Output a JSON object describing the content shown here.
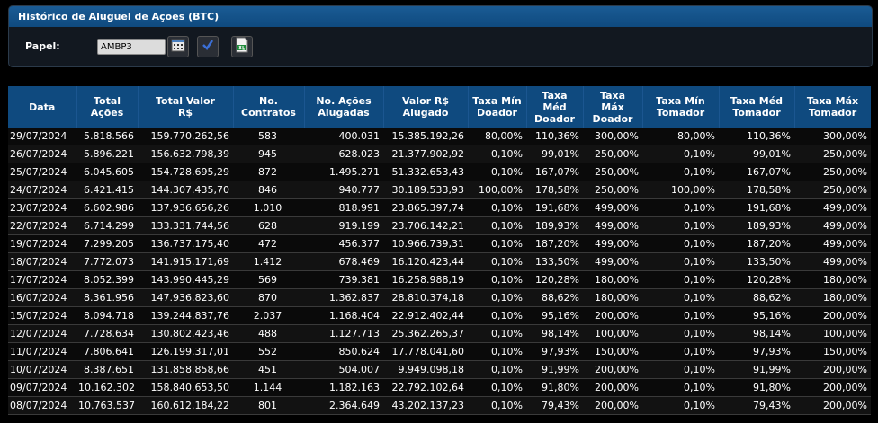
{
  "panel": {
    "title": "Histórico de Aluguel de Ações (BTC)",
    "papel_label": "Papel:",
    "ticker_value": "AMBP3",
    "buttons": [
      "calendar-icon",
      "checkmark-icon",
      "excel-export-icon"
    ]
  },
  "table": {
    "headers": [
      "Data",
      "Total\nAções",
      "Total Valor\nR$",
      "No.\nContratos",
      "No. Ações\nAlugadas",
      "Valor R$\nAlugado",
      "Taxa Mín\nDoador",
      "Taxa\nMéd\nDoador",
      "Taxa\nMáx\nDoador",
      "Taxa Mín\nTomador",
      "Taxa Méd\nTomador",
      "Taxa Máx\nTomador"
    ],
    "rows": [
      [
        "29/07/2024",
        "5.818.566",
        "159.770.262,56",
        "583",
        "400.031",
        "15.385.192,26",
        "80,00%",
        "110,36%",
        "300,00%",
        "80,00%",
        "110,36%",
        "300,00%"
      ],
      [
        "26/07/2024",
        "5.896.221",
        "156.632.798,39",
        "945",
        "628.023",
        "21.377.902,92",
        "0,10%",
        "99,01%",
        "250,00%",
        "0,10%",
        "99,01%",
        "250,00%"
      ],
      [
        "25/07/2024",
        "6.045.605",
        "154.728.695,29",
        "872",
        "1.495.271",
        "51.332.653,43",
        "0,10%",
        "167,07%",
        "250,00%",
        "0,10%",
        "167,07%",
        "250,00%"
      ],
      [
        "24/07/2024",
        "6.421.415",
        "144.307.435,70",
        "846",
        "940.777",
        "30.189.533,93",
        "100,00%",
        "178,58%",
        "250,00%",
        "100,00%",
        "178,58%",
        "250,00%"
      ],
      [
        "23/07/2024",
        "6.602.986",
        "137.936.656,26",
        "1.010",
        "818.991",
        "23.865.397,74",
        "0,10%",
        "191,68%",
        "499,00%",
        "0,10%",
        "191,68%",
        "499,00%"
      ],
      [
        "22/07/2024",
        "6.714.299",
        "133.331.744,56",
        "628",
        "919.199",
        "23.706.142,21",
        "0,10%",
        "189,93%",
        "499,00%",
        "0,10%",
        "189,93%",
        "499,00%"
      ],
      [
        "19/07/2024",
        "7.299.205",
        "136.737.175,40",
        "472",
        "456.377",
        "10.966.739,31",
        "0,10%",
        "187,20%",
        "499,00%",
        "0,10%",
        "187,20%",
        "499,00%"
      ],
      [
        "18/07/2024",
        "7.772.073",
        "141.915.171,69",
        "1.412",
        "678.469",
        "16.120.423,44",
        "0,10%",
        "133,50%",
        "499,00%",
        "0,10%",
        "133,50%",
        "499,00%"
      ],
      [
        "17/07/2024",
        "8.052.399",
        "143.990.445,29",
        "569",
        "739.381",
        "16.258.988,19",
        "0,10%",
        "120,28%",
        "180,00%",
        "0,10%",
        "120,28%",
        "180,00%"
      ],
      [
        "16/07/2024",
        "8.361.956",
        "147.936.823,60",
        "870",
        "1.362.837",
        "28.810.374,18",
        "0,10%",
        "88,62%",
        "180,00%",
        "0,10%",
        "88,62%",
        "180,00%"
      ],
      [
        "15/07/2024",
        "8.094.718",
        "139.244.837,76",
        "2.037",
        "1.168.404",
        "22.912.402,44",
        "0,10%",
        "95,16%",
        "200,00%",
        "0,10%",
        "95,16%",
        "200,00%"
      ],
      [
        "12/07/2024",
        "7.728.634",
        "130.802.423,46",
        "488",
        "1.127.713",
        "25.362.265,37",
        "0,10%",
        "98,14%",
        "100,00%",
        "0,10%",
        "98,14%",
        "100,00%"
      ],
      [
        "11/07/2024",
        "7.806.641",
        "126.199.317,01",
        "552",
        "850.624",
        "17.778.041,60",
        "0,10%",
        "97,93%",
        "150,00%",
        "0,10%",
        "97,93%",
        "150,00%"
      ],
      [
        "10/07/2024",
        "8.387.651",
        "131.858.858,66",
        "451",
        "504.007",
        "9.949.098,18",
        "0,10%",
        "91,99%",
        "200,00%",
        "0,10%",
        "91,99%",
        "200,00%"
      ],
      [
        "09/07/2024",
        "10.162.302",
        "158.840.653,50",
        "1.144",
        "1.182.163",
        "22.792.102,64",
        "0,10%",
        "91,80%",
        "200,00%",
        "0,10%",
        "91,80%",
        "200,00%"
      ],
      [
        "08/07/2024",
        "10.763.537",
        "160.612.184,22",
        "801",
        "2.364.649",
        "43.202.137,23",
        "0,10%",
        "79,43%",
        "200,00%",
        "0,10%",
        "79,43%",
        "200,00%"
      ]
    ]
  }
}
